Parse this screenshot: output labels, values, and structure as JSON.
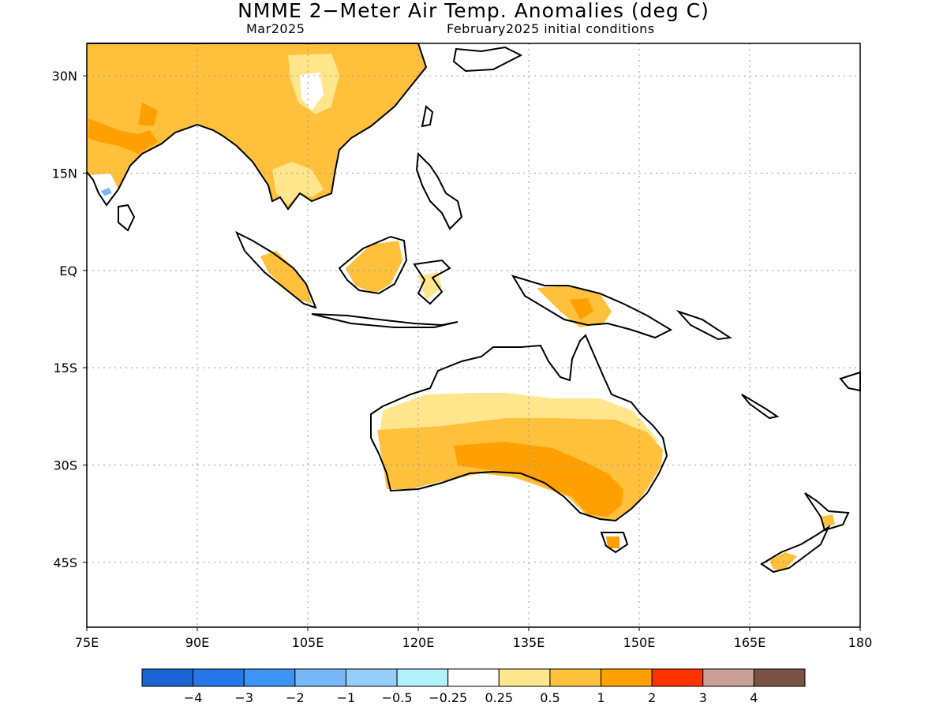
{
  "title": "NMME 2−Meter Air Temp. Anomalies (deg C)",
  "subtitle_left": "Mar2025",
  "subtitle_right": "February2025 initial conditions",
  "map": {
    "lon_range": [
      75,
      180
    ],
    "lat_range": [
      -55,
      35
    ],
    "x_ticks": [
      "75E",
      "90E",
      "105E",
      "120E",
      "135E",
      "150E",
      "165E",
      "180"
    ],
    "y_ticks": [
      "30N",
      "15N",
      "EQ",
      "15S",
      "30S",
      "45S"
    ],
    "gridlines": "dotted"
  },
  "colorbar": {
    "colors": [
      "#1a64d2",
      "#2778e6",
      "#3c95f5",
      "#78b8fa",
      "#96cdfa",
      "#b4f0fa",
      "#ffffff",
      "#ffe68c",
      "#ffc03c",
      "#ffa000",
      "#ff3200",
      "#c8a096",
      "#7a5244"
    ],
    "labels": [
      "−4",
      "−3",
      "−2",
      "−1",
      "−0.5",
      "−0.25",
      "0.25",
      "0.5",
      "1",
      "2",
      "3",
      "4"
    ]
  },
  "palette": {
    "land_outline": "#000000",
    "anom_025_05": "#ffe68c",
    "anom_05_1": "#ffc03c",
    "anom_1_2": "#ffa000",
    "cool": "#78b8fa"
  }
}
